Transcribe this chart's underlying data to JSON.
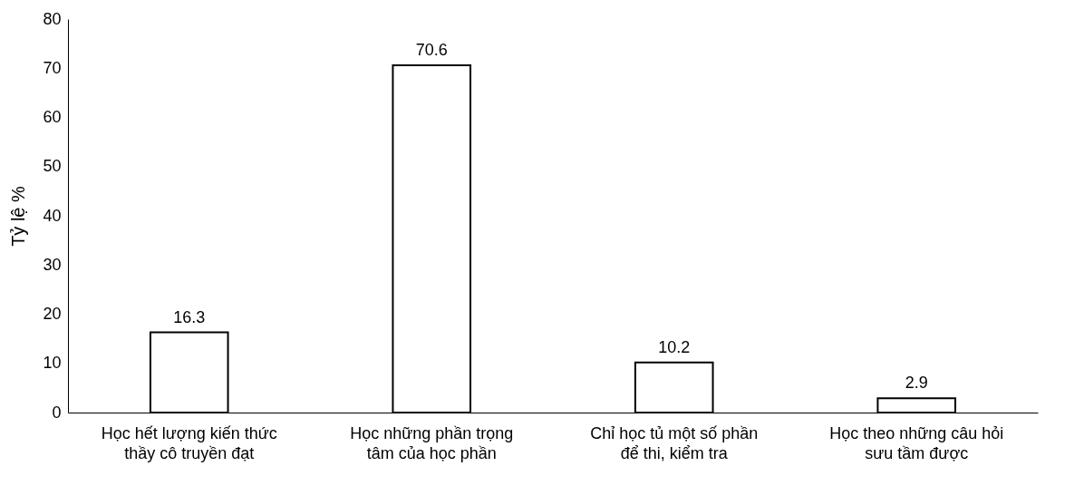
{
  "chart_data": {
    "type": "bar",
    "ylabel": "Tỷ lệ %",
    "categories": [
      "Học hết lượng kiến thức thầy cô truyền đạt",
      "Học những phần trọng tâm của học phần",
      "Chỉ học tủ một số phần để thi, kiểm tra",
      "Học theo những câu hỏi sưu tầm được"
    ],
    "values": [
      16.3,
      70.6,
      10.2,
      2.9
    ],
    "color": "#ffffff",
    "ylim": [
      0,
      80
    ],
    "yticks": [
      0,
      10,
      20,
      30,
      40,
      50,
      60,
      70,
      80
    ],
    "grid": false,
    "data_labels": true
  }
}
